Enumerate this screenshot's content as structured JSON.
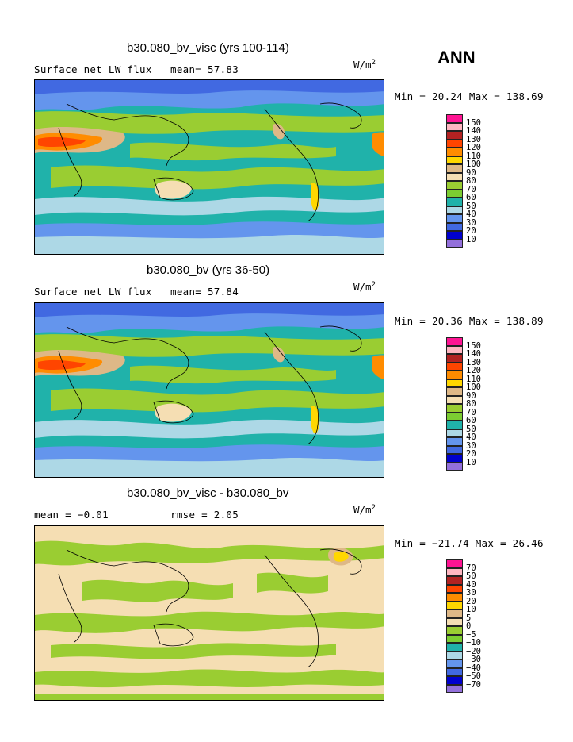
{
  "season_label": "ANN",
  "units": {
    "base": "W/m",
    "exp": "2"
  },
  "panels": [
    {
      "title": "b30.080_bv_visc (yrs 100-114)",
      "variable": "Surface net LW flux",
      "stat1": "mean=  57.83",
      "stat2": "",
      "minmax": "Min =  20.24 Max = 138.69",
      "style": "abs"
    },
    {
      "title": "b30.080_bv (yrs 36-50)",
      "variable": "Surface net LW flux",
      "stat1": "mean=  57.84",
      "stat2": "",
      "minmax": "Min =  20.36 Max = 138.89",
      "style": "abs"
    },
    {
      "title": "b30.080_bv_visc - b30.080_bv",
      "variable": "mean =  −0.01",
      "stat1": "",
      "stat2": "rmse =   2.05",
      "minmax": "Min = −21.74 Max =  26.46",
      "style": "diff"
    }
  ],
  "colorbars": {
    "abs_labels": [
      "150",
      "140",
      "130",
      "120",
      "110",
      "100",
      "90",
      "80",
      "70",
      "60",
      "50",
      "40",
      "30",
      "20",
      "10"
    ],
    "diff_labels": [
      "70",
      "50",
      "40",
      "30",
      "20",
      "10",
      "5",
      "0",
      "−5",
      "−10",
      "−20",
      "−30",
      "−40",
      "−50",
      "−70"
    ],
    "colors": [
      "#ff1493",
      "#ffb6c1",
      "#b22222",
      "#ff4500",
      "#ff8c00",
      "#ffd700",
      "#deb887",
      "#f5deb3",
      "#9acd32",
      "#7ccd32",
      "#20b2aa",
      "#add8e6",
      "#6495ed",
      "#4169e1",
      "#0000cd",
      "#9370db"
    ]
  },
  "chart_data": [
    {
      "type": "heatmap",
      "title": "b30.080_bv_visc (yrs 100-114)",
      "subtitle": "Surface net LW flux",
      "mean": 57.83,
      "min": 20.24,
      "max": 138.69,
      "units": "W/m^2",
      "levels": [
        10,
        20,
        30,
        40,
        50,
        60,
        70,
        80,
        90,
        100,
        110,
        120,
        130,
        140,
        150
      ]
    },
    {
      "type": "heatmap",
      "title": "b30.080_bv (yrs 36-50)",
      "subtitle": "Surface net LW flux",
      "mean": 57.84,
      "min": 20.36,
      "max": 138.89,
      "units": "W/m^2",
      "levels": [
        10,
        20,
        30,
        40,
        50,
        60,
        70,
        80,
        90,
        100,
        110,
        120,
        130,
        140,
        150
      ]
    },
    {
      "type": "heatmap",
      "title": "b30.080_bv_visc - b30.080_bv",
      "mean": -0.01,
      "rmse": 2.05,
      "min": -21.74,
      "max": 26.46,
      "units": "W/m^2",
      "levels": [
        -70,
        -50,
        -40,
        -30,
        -20,
        -10,
        -5,
        0,
        5,
        10,
        20,
        30,
        40,
        50,
        70
      ]
    }
  ]
}
